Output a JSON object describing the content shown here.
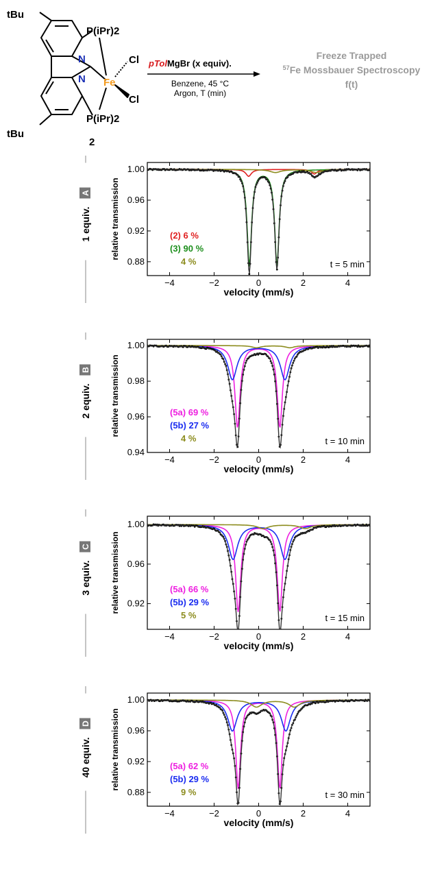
{
  "scheme": {
    "molecule": {
      "tbu_top": "tBu",
      "tbu_bottom": "tBu",
      "p_top": "P(iPr)2",
      "p_bottom": "P(iPr)2",
      "n_top": "N",
      "n_bottom": "N",
      "fe": "Fe",
      "cl_top": "Cl",
      "cl_bottom": "Cl",
      "compound_number": "2",
      "colors": {
        "fe": "#f39a1e",
        "n": "#1a2fb5",
        "bonds": "#000000"
      }
    },
    "reagent": {
      "prefix": "pTol",
      "suffix": "MgBr (x equiv).",
      "prefix_color": "#d7191c"
    },
    "conditions_line1": "Benzene, 45 °C",
    "conditions_line2": "Argon, T (min)",
    "product_line1": "Freeze Trapped",
    "product_line2_sup": "57",
    "product_line2": "Fe Mossbauer Spectroscopy",
    "product_line3": "f(t)",
    "product_color": "#9a9a9a"
  },
  "chart_data": [
    {
      "panel": "A",
      "condition": "1 equiv.",
      "type": "scatter",
      "xlabel": "velocity (mm/s)",
      "ylabel": "relative transmission",
      "xlim": [
        -5,
        5
      ],
      "ylim": [
        0.862,
        1.009
      ],
      "xticks": [
        -4,
        -2,
        0,
        2,
        4
      ],
      "yticks": [
        0.88,
        0.92,
        0.96,
        1.0
      ],
      "ytick_labels": [
        "0.88",
        "0.92",
        "0.96",
        "1.00"
      ],
      "time_label": "t = 5 min",
      "data_color": "#000000",
      "components": [
        {
          "name": "(2)",
          "percent": "6 %",
          "label": "(2) 6 %",
          "color": "#e02020",
          "lines": [
            [
              -0.45,
              0.3,
              0.009
            ],
            [
              2.5,
              0.3,
              0.006
            ]
          ]
        },
        {
          "name": "(3)",
          "percent": "90 %",
          "label": "(3) 90 %",
          "color": "#1e8f1e",
          "lines": [
            [
              -0.42,
              0.24,
              0.125
            ],
            [
              0.82,
              0.24,
              0.125
            ]
          ]
        },
        {
          "name": "",
          "percent": "4 %",
          "label": "4 %",
          "color": "#8c8c1e",
          "lines": [
            [
              0.75,
              0.6,
              0.004
            ],
            [
              2.6,
              0.6,
              0.004
            ]
          ]
        }
      ]
    },
    {
      "panel": "B",
      "condition": "2 equiv.",
      "type": "scatter",
      "xlabel": "velocity (mm/s)",
      "ylabel": "relative transmission",
      "xlim": [
        -5,
        5
      ],
      "ylim": [
        0.94,
        1.0035
      ],
      "xticks": [
        -4,
        -2,
        0,
        2,
        4
      ],
      "yticks": [
        0.94,
        0.96,
        0.98,
        1.0
      ],
      "ytick_labels": [
        "0.94",
        "0.96",
        "0.98",
        "1.00"
      ],
      "time_label": "t = 10 min",
      "data_color": "#000000",
      "components": [
        {
          "name": "(5a)",
          "percent": "69 %",
          "label": "(5a) 69 %",
          "color": "#ee1fe0",
          "lines": [
            [
              -0.95,
              0.28,
              0.046
            ],
            [
              0.95,
              0.28,
              0.046
            ]
          ]
        },
        {
          "name": "(5b)",
          "percent": "27 %",
          "label": "(5b) 27 %",
          "color": "#1a2cf0",
          "lines": [
            [
              -1.18,
              0.5,
              0.019
            ],
            [
              1.18,
              0.5,
              0.019
            ]
          ]
        },
        {
          "name": "",
          "percent": "4 %",
          "label": "4 %",
          "color": "#8c8c1e",
          "lines": [
            [
              -0.1,
              0.5,
              0.0012
            ],
            [
              1.4,
              0.5,
              0.0012
            ]
          ]
        }
      ]
    },
    {
      "panel": "C",
      "condition": "3 equiv.",
      "type": "scatter",
      "xlabel": "velocity (mm/s)",
      "ylabel": "relative transmission",
      "xlim": [
        -5,
        5
      ],
      "ylim": [
        0.894,
        1.0085
      ],
      "xticks": [
        -4,
        -2,
        0,
        2,
        4
      ],
      "yticks": [
        0.92,
        0.96,
        1.0
      ],
      "ytick_labels": [
        "0.92",
        "0.96",
        "1.00"
      ],
      "time_label": "t = 15 min",
      "data_color": "#000000",
      "components": [
        {
          "name": "(5a)",
          "percent": "66 %",
          "label": "(5a) 66 %",
          "color": "#ee1fe0",
          "lines": [
            [
              -0.92,
              0.28,
              0.088
            ],
            [
              0.95,
              0.28,
              0.088
            ]
          ]
        },
        {
          "name": "(5b)",
          "percent": "29 %",
          "label": "(5b) 29 %",
          "color": "#1a2cf0",
          "lines": [
            [
              -1.15,
              0.5,
              0.035
            ],
            [
              1.18,
              0.5,
              0.035
            ]
          ]
        },
        {
          "name": "",
          "percent": "5 %",
          "label": "5 %",
          "color": "#8c8c1e",
          "lines": [
            [
              0.2,
              0.6,
              0.004
            ],
            [
              2.1,
              0.6,
              0.004
            ]
          ]
        }
      ]
    },
    {
      "panel": "D",
      "condition": "40 equiv.",
      "type": "scatter",
      "xlabel": "velocity (mm/s)",
      "ylabel": "relative transmission",
      "xlim": [
        -5,
        5
      ],
      "ylim": [
        0.862,
        1.009
      ],
      "xticks": [
        -4,
        -2,
        0,
        2,
        4
      ],
      "yticks": [
        0.88,
        0.92,
        0.96,
        1.0
      ],
      "ytick_labels": [
        "0.88",
        "0.92",
        "0.96",
        "1.00"
      ],
      "time_label": "t = 30 min",
      "data_color": "#000000",
      "components": [
        {
          "name": "(5a)",
          "percent": "62 %",
          "label": "(5a) 62 %",
          "color": "#ee1fe0",
          "lines": [
            [
              -0.92,
              0.26,
              0.115
            ],
            [
              0.95,
              0.26,
              0.115
            ]
          ]
        },
        {
          "name": "(5b)",
          "percent": "29 %",
          "label": "(5b) 29 %",
          "color": "#1a2cf0",
          "lines": [
            [
              -1.18,
              0.5,
              0.04
            ],
            [
              1.22,
              0.5,
              0.04
            ]
          ]
        },
        {
          "name": "",
          "percent": "9 %",
          "label": "9 %",
          "color": "#8c8c1e",
          "lines": [
            [
              -0.1,
              0.6,
              0.009
            ],
            [
              1.6,
              0.6,
              0.009
            ]
          ]
        }
      ]
    }
  ]
}
